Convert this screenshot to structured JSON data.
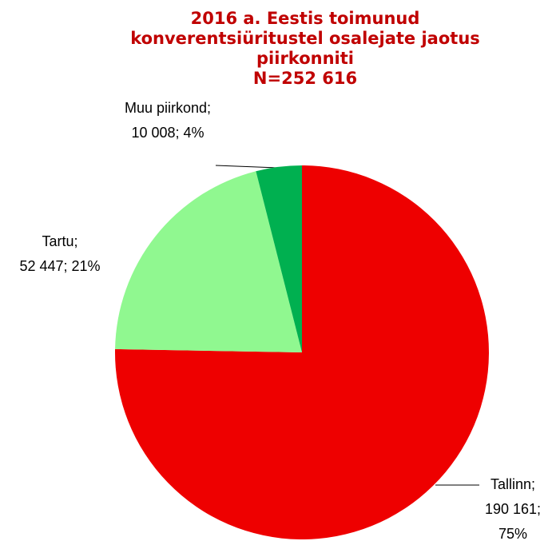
{
  "chart_data": {
    "type": "pie",
    "title_lines": [
      "2016 a. Eestis toimunud",
      "konverentsiüritustel osalejate jaotus",
      "piirkonniti"
    ],
    "subtitle": "N=252 616",
    "categories": [
      "Tallinn;",
      "Tartu;",
      "Muu piirkond;"
    ],
    "values": [
      190161,
      52447,
      10008
    ],
    "value_labels": [
      "190 161;",
      "52 447;",
      "10 008;"
    ],
    "percents": [
      75,
      21,
      4
    ],
    "percent_labels": [
      "75%",
      "21%",
      "4%"
    ],
    "colors": [
      "#ee0000",
      "#90f890",
      "#00b050"
    ]
  }
}
